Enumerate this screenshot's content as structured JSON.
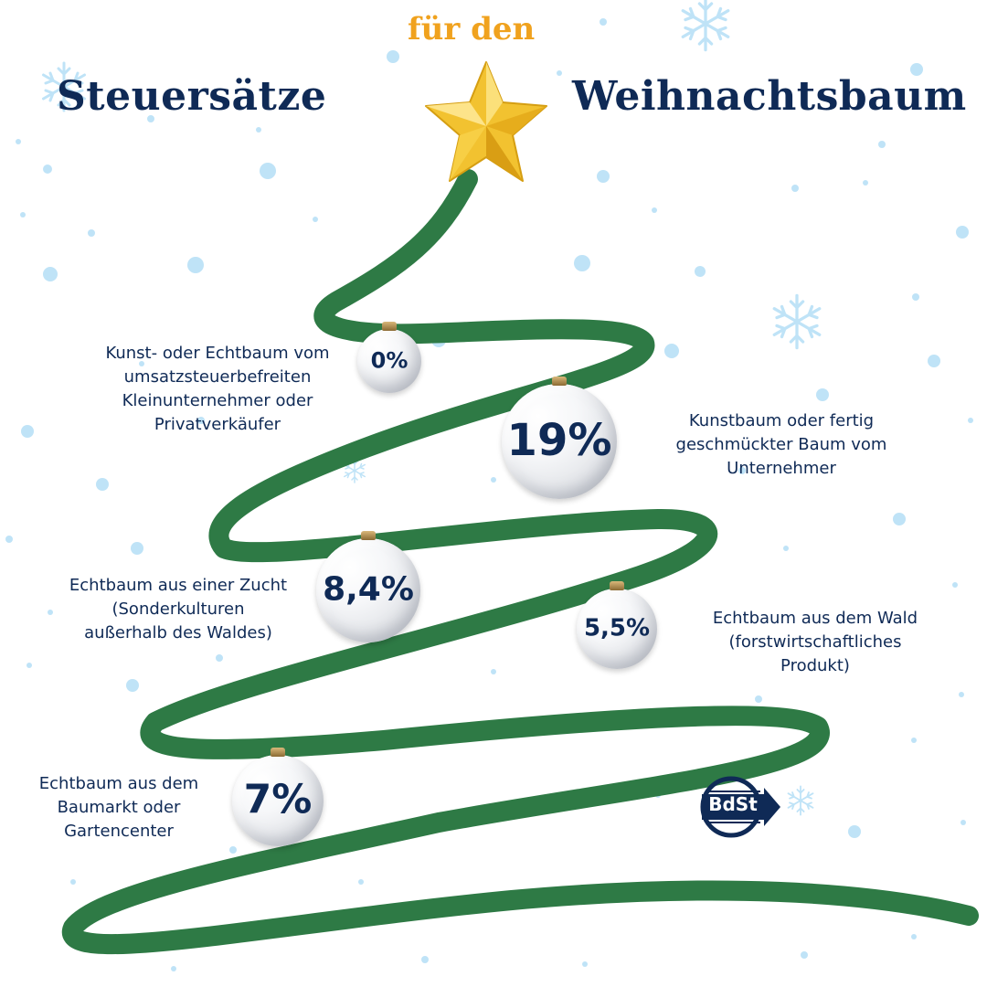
{
  "title": {
    "left": "Steuersätze",
    "middle": "für den",
    "right": "Weihnachtsbaum"
  },
  "items": [
    {
      "rate": "0%",
      "description": "Kunst- oder Echtbaum vom\numsatzsteuerbefreiten\nKleinunternehmer oder\nPrivatverkäufer"
    },
    {
      "rate": "19%",
      "description": "Kunstbaum oder fertig\ngeschmückter Baum vom\nUnternehmer"
    },
    {
      "rate": "8,4%",
      "description": "Echtbaum aus einer Zucht\n(Sonderkulturen\naußerhalb des Waldes)"
    },
    {
      "rate": "5,5%",
      "description": "Echtbaum aus dem Wald\n(forstwirtschaftliches\nProdukt)"
    },
    {
      "rate": "7%",
      "description": "Echtbaum aus dem\nBaumarkt oder\nGartencenter"
    }
  ],
  "logo": {
    "text": "BdSt"
  },
  "colors": {
    "navy": "#0f2a56",
    "orange": "#f0a21e",
    "tree_green": "#2e7a45",
    "star_gold": "#f2c230",
    "snow_blue": "#bfe3f7"
  },
  "icons": [
    "star-icon",
    "snowflake-icon",
    "christmas-ball-icon",
    "bdst-logo-icon"
  ]
}
